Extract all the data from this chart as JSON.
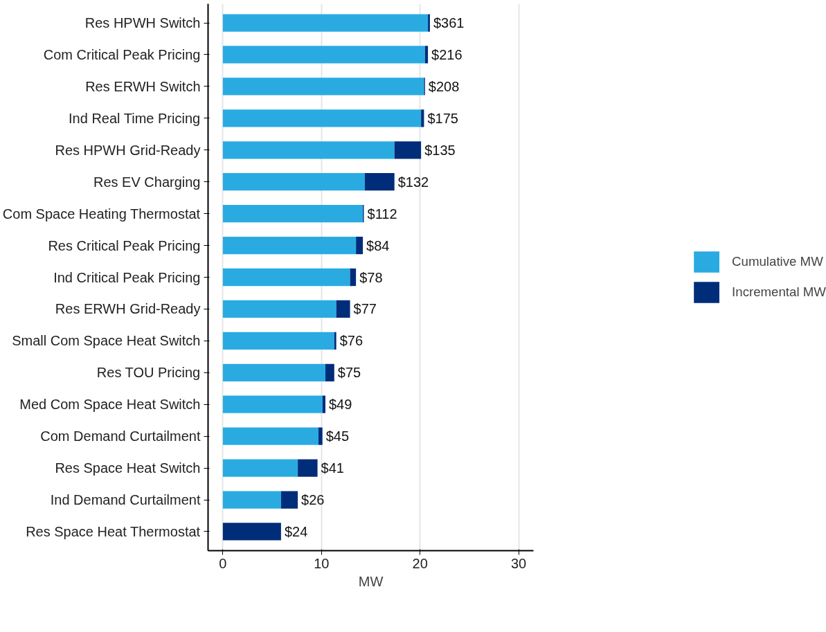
{
  "chart_data": {
    "type": "bar",
    "orientation": "horizontal",
    "stacked": true,
    "xlabel": "MW",
    "categories": [
      "Res HPWH Switch",
      "Com Critical Peak Pricing",
      "Res ERWH Switch",
      "Ind Real Time Pricing",
      "Res HPWH Grid-Ready",
      "Res EV Charging",
      "Com Space Heating Thermostat",
      "Res Critical Peak Pricing",
      "Ind Critical Peak Pricing",
      "Res ERWH Grid-Ready",
      "Small Com Space Heat Switch",
      "Res TOU Pricing",
      "Med Com Space Heat Switch",
      "Com Demand Curtailment",
      "Res Space Heat Switch",
      "Ind Demand Curtailment",
      "Res Space Heat Thermostat"
    ],
    "series": [
      {
        "name": "Cumulative MW",
        "color": "#29abe2",
        "values": [
          20.8,
          20.5,
          20.4,
          20.1,
          17.4,
          14.4,
          14.2,
          13.5,
          12.9,
          11.5,
          11.3,
          10.4,
          10.1,
          9.7,
          7.6,
          5.9,
          0
        ]
      },
      {
        "name": "Incremental MW",
        "color": "#002d7a",
        "values": [
          0.2,
          0.3,
          0.1,
          0.3,
          2.7,
          3.0,
          0.1,
          0.7,
          0.6,
          1.4,
          0.2,
          0.9,
          0.3,
          0.4,
          2.0,
          1.7,
          5.9
        ]
      }
    ],
    "value_labels": [
      "$361",
      "$216",
      "$208",
      "$175",
      "$135",
      "$132",
      "$112",
      "$84",
      "$78",
      "$77",
      "$76",
      "$75",
      "$49",
      "$45",
      "$41",
      "$26",
      "$24"
    ],
    "xlim": [
      -1.5,
      31.5
    ],
    "xticks": [
      0,
      10,
      20,
      30
    ],
    "grid": "x",
    "legend": "right"
  }
}
